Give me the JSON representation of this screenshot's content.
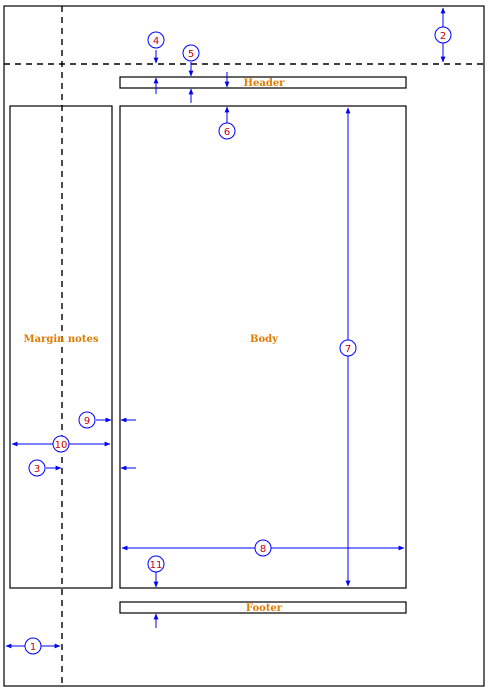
{
  "regions": {
    "header": "Header",
    "body": "Body",
    "margin_notes": "Margin notes",
    "footer": "Footer"
  },
  "callouts": [
    "1",
    "2",
    "3",
    "4",
    "5",
    "6",
    "7",
    "8",
    "9",
    "10",
    "11"
  ],
  "colors": {
    "region_label": "#e07b00",
    "callout_number": "#cc0000",
    "dimension_line": "#0000ff",
    "outline": "#000000"
  }
}
